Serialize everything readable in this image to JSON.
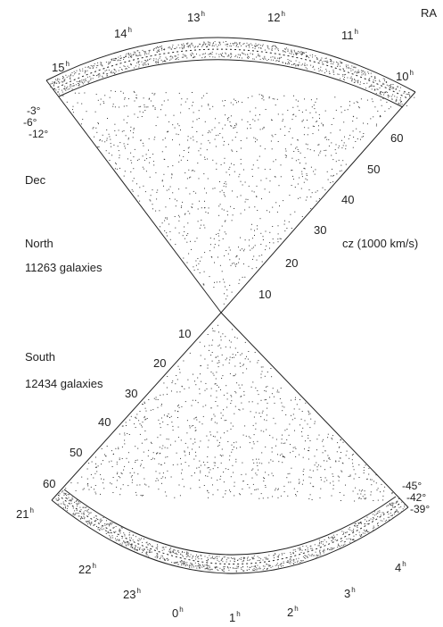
{
  "ra_label": "RA",
  "cz_label": "cz (1000 km/s)",
  "dec_label": "Dec",
  "north": {
    "label": "North",
    "count": "11263 galaxies",
    "dec_slices": [
      "-3°",
      "-6°",
      "-12°"
    ],
    "ra_hours": [
      {
        "h": "15",
        "unit": "h"
      },
      {
        "h": "14",
        "unit": "h"
      },
      {
        "h": "13",
        "unit": "h"
      },
      {
        "h": "12",
        "unit": "h"
      },
      {
        "h": "11",
        "unit": "h"
      },
      {
        "h": "10",
        "unit": "h"
      }
    ],
    "cz_ticks": [
      "60",
      "50",
      "40",
      "30",
      "20",
      "10"
    ]
  },
  "south": {
    "label": "South",
    "count": "12434 galaxies",
    "dec_slices": [
      "-45°",
      "-42°",
      "-39°"
    ],
    "ra_hours": [
      {
        "h": "21",
        "unit": "h"
      },
      {
        "h": "22",
        "unit": "h"
      },
      {
        "h": "23",
        "unit": "h"
      },
      {
        "h": "0",
        "unit": "h"
      },
      {
        "h": "1",
        "unit": "h"
      },
      {
        "h": "2",
        "unit": "h"
      },
      {
        "h": "3",
        "unit": "h"
      },
      {
        "h": "4",
        "unit": "h"
      }
    ],
    "cz_ticks": [
      "10",
      "20",
      "30",
      "40",
      "50",
      "60"
    ]
  }
}
